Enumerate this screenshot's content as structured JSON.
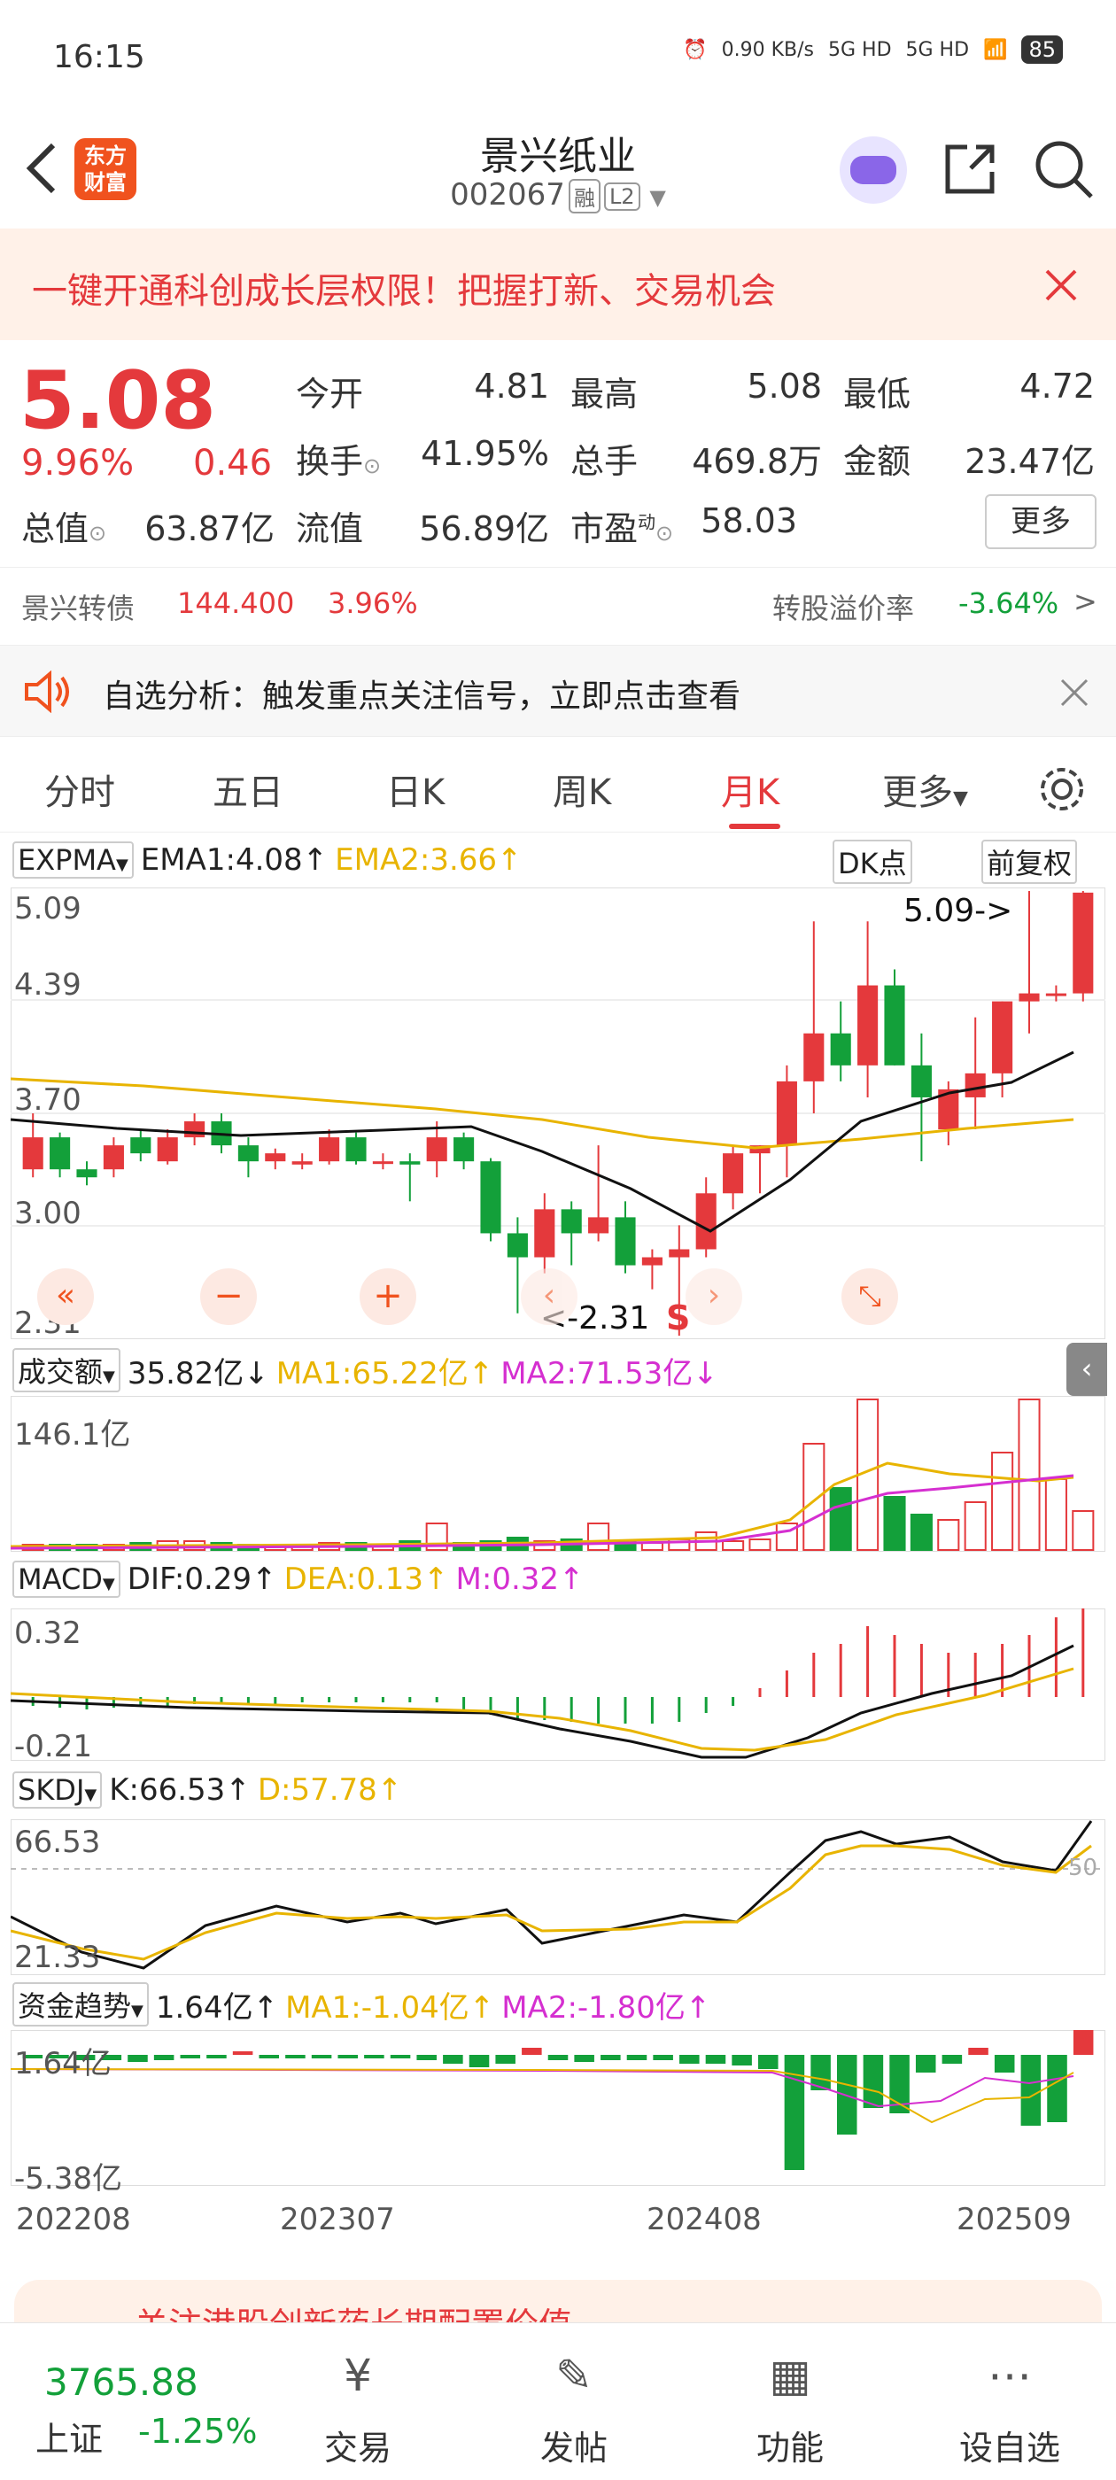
{
  "status": {
    "time": "16:15",
    "net": "0.90 KB/s",
    "sig1": "5G HD",
    "sig2": "5G HD",
    "battery": "85"
  },
  "header": {
    "logo": "东方财富",
    "title": "景兴纸业",
    "code": "002067",
    "tag1": "融",
    "tag2": "L2"
  },
  "promo": {
    "text": "一键开通科创成长层权限！把握打新、交易机会"
  },
  "quote": {
    "price": "5.08",
    "pct": "9.96%",
    "change": "0.46",
    "open_label": "今开",
    "open": "4.81",
    "high_label": "最高",
    "high": "5.08",
    "low_label": "最低",
    "low": "4.72",
    "turnover_label": "换手",
    "turnover": "41.95%",
    "volume_label": "总手",
    "volume": "469.8万",
    "amount_label": "金额",
    "amount": "23.47亿",
    "mcap_label": "总值",
    "mcap": "63.87亿",
    "float_label": "流值",
    "float": "56.89亿",
    "pe_label": "市盈",
    "pe_sup": "动",
    "pe": "58.03",
    "more": "更多"
  },
  "bond": {
    "label": "景兴转债",
    "price": "144.400",
    "pct": "3.96%",
    "premium_label": "转股溢价率",
    "premium": "-3.64%"
  },
  "analysis": {
    "text": "自选分析：触发重点关注信号，立即点击查看"
  },
  "tabs": [
    {
      "label": "分时"
    },
    {
      "label": "五日"
    },
    {
      "label": "日K"
    },
    {
      "label": "周K"
    },
    {
      "label": "月K"
    },
    {
      "label": "更多"
    }
  ],
  "main_chart": {
    "indicator": "EXPMA",
    "ema1": "EMA1:4.08",
    "ema2": "EMA2:3.66",
    "dk": "DK点",
    "adjust": "前复权",
    "high_mark": "5.09->",
    "low_mark": "<-2.31",
    "s_mark": "S",
    "axis": [
      "5.09",
      "4.39",
      "3.70",
      "3.00",
      "2.31"
    ]
  },
  "volume_panel": {
    "name": "成交额",
    "value": "35.82亿",
    "ma1": "MA1:65.22亿",
    "ma2": "MA2:71.53亿",
    "axis_top": "146.1亿"
  },
  "macd_panel": {
    "name": "MACD",
    "dif": "DIF:0.29",
    "dea": "DEA:0.13",
    "m": "M:0.32",
    "axis_top": "0.32",
    "axis_bottom": "-0.21"
  },
  "skdj_panel": {
    "name": "SKDJ",
    "k": "K:66.53",
    "d": "D:57.78",
    "axis_top": "66.53",
    "axis_bottom": "21.33",
    "mid": "50"
  },
  "fund_panel": {
    "name": "资金趋势",
    "value": "1.64亿",
    "ma1": "MA1:-1.04亿",
    "ma2": "MA2:-1.80亿",
    "axis_top": "1.64亿",
    "axis_bottom": "-5.38亿"
  },
  "x_axis": [
    "202208",
    "202307",
    "202408",
    "202509"
  ],
  "banner2": {
    "text": "关注港股创新药长期配置价值"
  },
  "bottom": {
    "index_value": "3765.88",
    "index_name": "上证",
    "index_pct": "-1.25%",
    "nav": [
      "交易",
      "发帖",
      "功能",
      "设自选"
    ]
  },
  "colors": {
    "up": "#e4393c",
    "down": "#13a03a",
    "ema2": "#e8b400",
    "ma2": "#d52fd0"
  },
  "chart_data": {
    "type": "candlestick",
    "ylim": [
      2.31,
      5.09
    ],
    "candles": [
      [
        3.35,
        3.7,
        3.3,
        3.55
      ],
      [
        3.55,
        3.58,
        3.3,
        3.35
      ],
      [
        3.35,
        3.4,
        3.25,
        3.3
      ],
      [
        3.35,
        3.55,
        3.3,
        3.5
      ],
      [
        3.55,
        3.6,
        3.4,
        3.45
      ],
      [
        3.4,
        3.6,
        3.38,
        3.55
      ],
      [
        3.55,
        3.7,
        3.5,
        3.65
      ],
      [
        3.65,
        3.7,
        3.45,
        3.5
      ],
      [
        3.5,
        3.55,
        3.3,
        3.4
      ],
      [
        3.4,
        3.48,
        3.35,
        3.45
      ],
      [
        3.38,
        3.45,
        3.35,
        3.4
      ],
      [
        3.4,
        3.6,
        3.38,
        3.55
      ],
      [
        3.55,
        3.58,
        3.38,
        3.4
      ],
      [
        3.4,
        3.45,
        3.35,
        3.4
      ],
      [
        3.4,
        3.45,
        3.15,
        3.38
      ],
      [
        3.4,
        3.65,
        3.3,
        3.55
      ],
      [
        3.55,
        3.58,
        3.35,
        3.4
      ],
      [
        3.4,
        3.42,
        2.9,
        2.95
      ],
      [
        2.95,
        3.05,
        2.45,
        2.8
      ],
      [
        2.8,
        3.2,
        2.7,
        3.1
      ],
      [
        3.1,
        3.15,
        2.75,
        2.95
      ],
      [
        2.95,
        3.5,
        2.9,
        3.05
      ],
      [
        3.05,
        3.15,
        2.7,
        2.75
      ],
      [
        2.75,
        2.85,
        2.6,
        2.8
      ],
      [
        2.8,
        3.0,
        2.31,
        2.85
      ],
      [
        2.85,
        3.3,
        2.8,
        3.2
      ],
      [
        3.2,
        3.5,
        3.1,
        3.45
      ],
      [
        3.45,
        3.5,
        3.2,
        3.5
      ],
      [
        3.5,
        4.0,
        3.3,
        3.9
      ],
      [
        3.9,
        4.9,
        3.7,
        4.2
      ],
      [
        4.2,
        4.4,
        3.9,
        4.0
      ],
      [
        4.0,
        4.9,
        3.8,
        4.5
      ],
      [
        4.5,
        4.6,
        4.0,
        4.0
      ],
      [
        4.0,
        4.2,
        3.4,
        3.8
      ],
      [
        3.6,
        3.9,
        3.5,
        3.85
      ],
      [
        3.8,
        4.3,
        3.6,
        3.95
      ],
      [
        3.95,
        4.4,
        3.8,
        4.4
      ],
      [
        4.4,
        5.09,
        4.2,
        4.45
      ],
      [
        4.45,
        4.5,
        4.4,
        4.45
      ],
      [
        4.45,
        5.09,
        4.4,
        5.08
      ]
    ]
  }
}
